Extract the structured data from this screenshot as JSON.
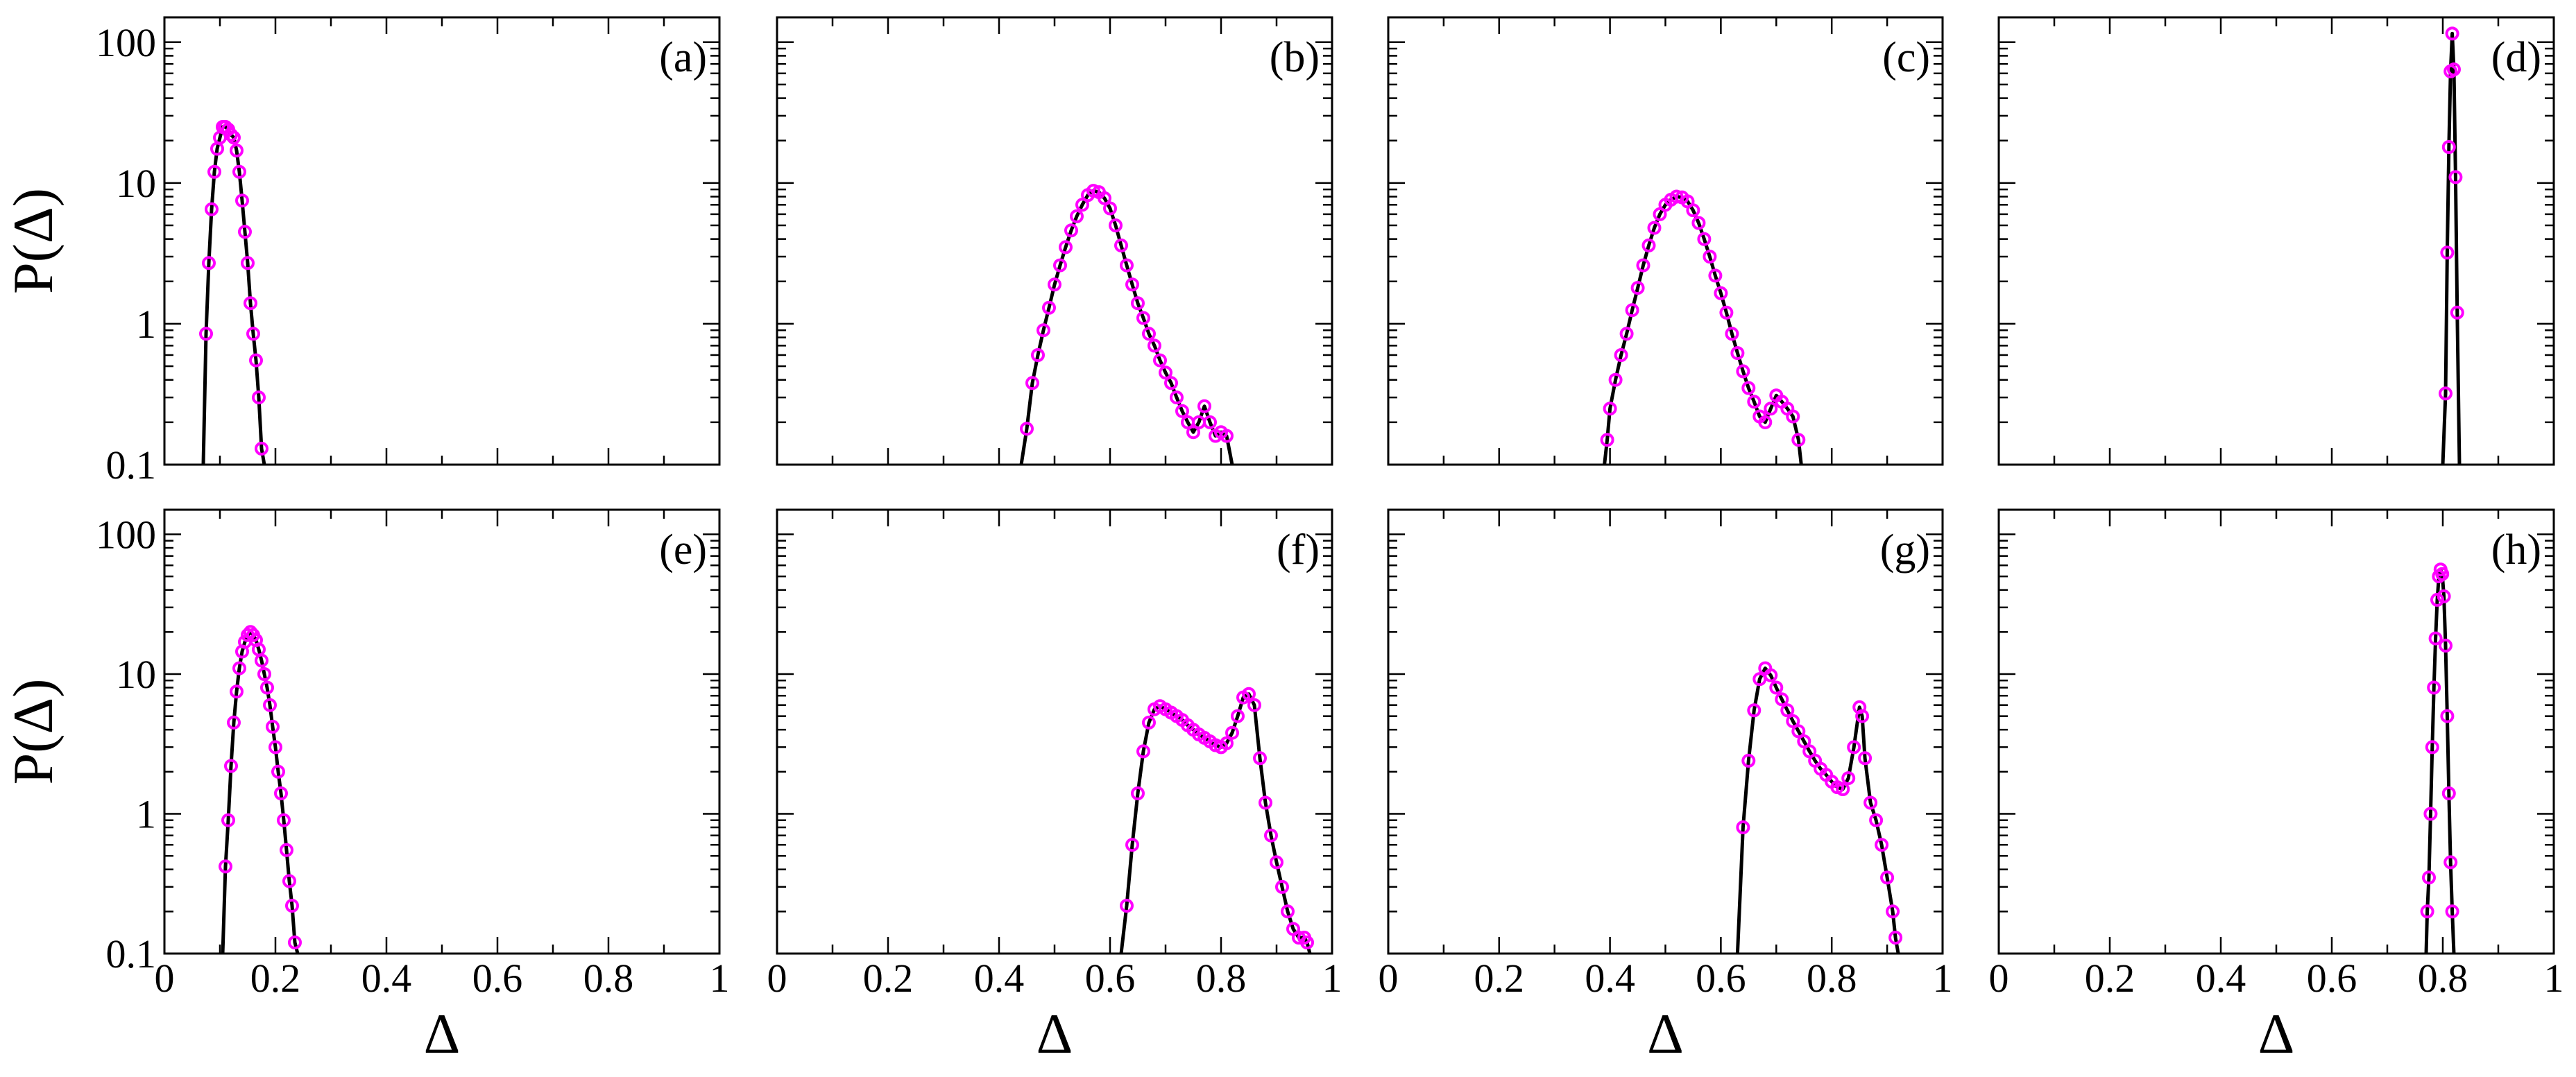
{
  "figure": {
    "xlabel": "Δ",
    "ylabel": "P(Δ)",
    "line_color": "#000000",
    "marker_color": "#ff00ff",
    "x_tick_labels": [
      "0",
      "0.2",
      "0.4",
      "0.6",
      "0.8",
      "1"
    ],
    "y_tick_labels": [
      "0.1",
      "1",
      "10",
      "100"
    ]
  },
  "chart_data": [
    {
      "panel": "(a)",
      "type": "line",
      "xlim": [
        0,
        1
      ],
      "ylim": [
        0.1,
        150
      ],
      "yscale": "log",
      "xlabel": "",
      "ylabel": "P(Δ)",
      "series": [
        {
          "name": "P(Δ)",
          "points": [
            [
              0.07,
              0.1
            ],
            [
              0.075,
              0.85
            ],
            [
              0.08,
              2.7
            ],
            [
              0.085,
              6.5
            ],
            [
              0.09,
              12
            ],
            [
              0.095,
              17.5
            ],
            [
              0.1,
              21
            ],
            [
              0.105,
              25
            ],
            [
              0.11,
              25
            ],
            [
              0.115,
              24
            ],
            [
              0.12,
              22
            ],
            [
              0.125,
              21
            ],
            [
              0.13,
              17
            ],
            [
              0.135,
              12
            ],
            [
              0.14,
              7.5
            ],
            [
              0.145,
              4.5
            ],
            [
              0.15,
              2.7
            ],
            [
              0.155,
              1.4
            ],
            [
              0.16,
              0.85
            ],
            [
              0.165,
              0.55
            ],
            [
              0.17,
              0.3
            ],
            [
              0.175,
              0.13
            ],
            [
              0.18,
              0.1
            ]
          ]
        }
      ]
    },
    {
      "panel": "(b)",
      "type": "line",
      "xlim": [
        0,
        1
      ],
      "ylim": [
        0.1,
        150
      ],
      "yscale": "log",
      "series": [
        {
          "name": "P(Δ)",
          "points": [
            [
              0.44,
              0.1
            ],
            [
              0.45,
              0.18
            ],
            [
              0.46,
              0.38
            ],
            [
              0.47,
              0.6
            ],
            [
              0.48,
              0.9
            ],
            [
              0.49,
              1.3
            ],
            [
              0.5,
              1.9
            ],
            [
              0.51,
              2.6
            ],
            [
              0.52,
              3.5
            ],
            [
              0.53,
              4.6
            ],
            [
              0.54,
              5.8
            ],
            [
              0.55,
              7
            ],
            [
              0.56,
              8.2
            ],
            [
              0.57,
              8.8
            ],
            [
              0.58,
              8.6
            ],
            [
              0.59,
              7.8
            ],
            [
              0.6,
              6.6
            ],
            [
              0.61,
              5
            ],
            [
              0.62,
              3.6
            ],
            [
              0.63,
              2.6
            ],
            [
              0.64,
              1.9
            ],
            [
              0.65,
              1.4
            ],
            [
              0.66,
              1.1
            ],
            [
              0.67,
              0.85
            ],
            [
              0.68,
              0.7
            ],
            [
              0.69,
              0.55
            ],
            [
              0.7,
              0.45
            ],
            [
              0.71,
              0.38
            ],
            [
              0.72,
              0.3
            ],
            [
              0.73,
              0.24
            ],
            [
              0.74,
              0.2
            ],
            [
              0.75,
              0.17
            ],
            [
              0.76,
              0.2
            ],
            [
              0.77,
              0.26
            ],
            [
              0.78,
              0.2
            ],
            [
              0.79,
              0.16
            ],
            [
              0.8,
              0.17
            ],
            [
              0.81,
              0.16
            ],
            [
              0.82,
              0.1
            ]
          ]
        }
      ]
    },
    {
      "panel": "(c)",
      "type": "line",
      "xlim": [
        0,
        1
      ],
      "ylim": [
        0.1,
        150
      ],
      "yscale": "log",
      "series": [
        {
          "name": "P(Δ)",
          "points": [
            [
              0.39,
              0.1
            ],
            [
              0.395,
              0.15
            ],
            [
              0.4,
              0.25
            ],
            [
              0.41,
              0.4
            ],
            [
              0.42,
              0.6
            ],
            [
              0.43,
              0.85
            ],
            [
              0.44,
              1.25
            ],
            [
              0.45,
              1.8
            ],
            [
              0.46,
              2.6
            ],
            [
              0.47,
              3.6
            ],
            [
              0.48,
              4.8
            ],
            [
              0.49,
              6
            ],
            [
              0.5,
              7
            ],
            [
              0.51,
              7.6
            ],
            [
              0.52,
              8
            ],
            [
              0.53,
              7.9
            ],
            [
              0.54,
              7.4
            ],
            [
              0.55,
              6.4
            ],
            [
              0.56,
              5.2
            ],
            [
              0.57,
              4
            ],
            [
              0.58,
              3
            ],
            [
              0.59,
              2.2
            ],
            [
              0.6,
              1.65
            ],
            [
              0.61,
              1.2
            ],
            [
              0.62,
              0.85
            ],
            [
              0.63,
              0.62
            ],
            [
              0.64,
              0.46
            ],
            [
              0.65,
              0.35
            ],
            [
              0.66,
              0.28
            ],
            [
              0.67,
              0.22
            ],
            [
              0.68,
              0.2
            ],
            [
              0.69,
              0.25
            ],
            [
              0.7,
              0.31
            ],
            [
              0.71,
              0.28
            ],
            [
              0.72,
              0.25
            ],
            [
              0.73,
              0.22
            ],
            [
              0.74,
              0.15
            ],
            [
              0.745,
              0.1
            ]
          ]
        }
      ]
    },
    {
      "panel": "(d)",
      "type": "line",
      "xlim": [
        0,
        1
      ],
      "ylim": [
        0.1,
        150
      ],
      "yscale": "log",
      "series": [
        {
          "name": "P(Δ)",
          "points": [
            [
              0.8,
              0.1
            ],
            [
              0.805,
              0.32
            ],
            [
              0.808,
              3.2
            ],
            [
              0.811,
              18
            ],
            [
              0.814,
              62
            ],
            [
              0.817,
              115
            ],
            [
              0.82,
              64
            ],
            [
              0.823,
              11
            ],
            [
              0.826,
              1.2
            ],
            [
              0.83,
              0.1
            ]
          ]
        }
      ]
    },
    {
      "panel": "(e)",
      "type": "line",
      "xlim": [
        0,
        1
      ],
      "ylim": [
        0.1,
        150
      ],
      "yscale": "log",
      "xlabel": "Δ",
      "ylabel": "P(Δ)",
      "series": [
        {
          "name": "P(Δ)",
          "points": [
            [
              0.105,
              0.1
            ],
            [
              0.11,
              0.42
            ],
            [
              0.115,
              0.9
            ],
            [
              0.12,
              2.2
            ],
            [
              0.125,
              4.5
            ],
            [
              0.13,
              7.5
            ],
            [
              0.135,
              11
            ],
            [
              0.14,
              14.5
            ],
            [
              0.145,
              17
            ],
            [
              0.15,
              19
            ],
            [
              0.155,
              20
            ],
            [
              0.16,
              19
            ],
            [
              0.165,
              17.5
            ],
            [
              0.17,
              15
            ],
            [
              0.175,
              12.5
            ],
            [
              0.18,
              10
            ],
            [
              0.185,
              8
            ],
            [
              0.19,
              6
            ],
            [
              0.195,
              4.2
            ],
            [
              0.2,
              3
            ],
            [
              0.205,
              2
            ],
            [
              0.21,
              1.4
            ],
            [
              0.215,
              0.9
            ],
            [
              0.22,
              0.55
            ],
            [
              0.225,
              0.33
            ],
            [
              0.23,
              0.22
            ],
            [
              0.235,
              0.12
            ],
            [
              0.24,
              0.1
            ]
          ]
        }
      ]
    },
    {
      "panel": "(f)",
      "type": "line",
      "xlim": [
        0,
        1
      ],
      "ylim": [
        0.1,
        150
      ],
      "yscale": "log",
      "xlabel": "Δ",
      "series": [
        {
          "name": "P(Δ)",
          "points": [
            [
              0.62,
              0.1
            ],
            [
              0.63,
              0.22
            ],
            [
              0.64,
              0.6
            ],
            [
              0.65,
              1.4
            ],
            [
              0.66,
              2.8
            ],
            [
              0.67,
              4.5
            ],
            [
              0.68,
              5.6
            ],
            [
              0.69,
              5.9
            ],
            [
              0.7,
              5.6
            ],
            [
              0.71,
              5.3
            ],
            [
              0.72,
              5
            ],
            [
              0.73,
              4.7
            ],
            [
              0.74,
              4.3
            ],
            [
              0.75,
              4
            ],
            [
              0.76,
              3.7
            ],
            [
              0.77,
              3.5
            ],
            [
              0.78,
              3.3
            ],
            [
              0.79,
              3.1
            ],
            [
              0.8,
              3
            ],
            [
              0.81,
              3.2
            ],
            [
              0.82,
              3.8
            ],
            [
              0.83,
              5
            ],
            [
              0.84,
              6.8
            ],
            [
              0.85,
              7.2
            ],
            [
              0.86,
              6
            ],
            [
              0.87,
              2.5
            ],
            [
              0.88,
              1.2
            ],
            [
              0.89,
              0.7
            ],
            [
              0.9,
              0.45
            ],
            [
              0.91,
              0.3
            ],
            [
              0.92,
              0.2
            ],
            [
              0.93,
              0.15
            ],
            [
              0.94,
              0.13
            ],
            [
              0.95,
              0.13
            ],
            [
              0.955,
              0.12
            ],
            [
              0.96,
              0.1
            ]
          ]
        }
      ]
    },
    {
      "panel": "(g)",
      "type": "line",
      "xlim": [
        0,
        1
      ],
      "ylim": [
        0.1,
        150
      ],
      "yscale": "log",
      "xlabel": "Δ",
      "series": [
        {
          "name": "P(Δ)",
          "points": [
            [
              0.63,
              0.1
            ],
            [
              0.64,
              0.8
            ],
            [
              0.65,
              2.4
            ],
            [
              0.66,
              5.5
            ],
            [
              0.67,
              9.2
            ],
            [
              0.68,
              11
            ],
            [
              0.69,
              9.8
            ],
            [
              0.7,
              8
            ],
            [
              0.71,
              6.6
            ],
            [
              0.72,
              5.5
            ],
            [
              0.73,
              4.6
            ],
            [
              0.74,
              3.9
            ],
            [
              0.75,
              3.3
            ],
            [
              0.76,
              2.8
            ],
            [
              0.77,
              2.4
            ],
            [
              0.78,
              2.1
            ],
            [
              0.79,
              1.9
            ],
            [
              0.8,
              1.7
            ],
            [
              0.81,
              1.55
            ],
            [
              0.82,
              1.5
            ],
            [
              0.83,
              1.8
            ],
            [
              0.84,
              3
            ],
            [
              0.85,
              5.8
            ],
            [
              0.855,
              5
            ],
            [
              0.86,
              2.5
            ],
            [
              0.87,
              1.2
            ],
            [
              0.88,
              0.9
            ],
            [
              0.89,
              0.6
            ],
            [
              0.9,
              0.35
            ],
            [
              0.91,
              0.2
            ],
            [
              0.915,
              0.13
            ],
            [
              0.92,
              0.1
            ]
          ]
        }
      ]
    },
    {
      "panel": "(h)",
      "type": "line",
      "xlim": [
        0,
        1
      ],
      "ylim": [
        0.1,
        150
      ],
      "yscale": "log",
      "xlabel": "Δ",
      "series": [
        {
          "name": "P(Δ)",
          "points": [
            [
              0.77,
              0.1
            ],
            [
              0.772,
              0.2
            ],
            [
              0.775,
              0.35
            ],
            [
              0.778,
              1
            ],
            [
              0.781,
              3
            ],
            [
              0.784,
              8
            ],
            [
              0.787,
              18
            ],
            [
              0.79,
              34
            ],
            [
              0.793,
              50
            ],
            [
              0.796,
              56
            ],
            [
              0.799,
              52
            ],
            [
              0.802,
              36
            ],
            [
              0.805,
              16
            ],
            [
              0.808,
              5
            ],
            [
              0.811,
              1.4
            ],
            [
              0.814,
              0.45
            ],
            [
              0.817,
              0.2
            ],
            [
              0.82,
              0.1
            ]
          ]
        }
      ]
    }
  ]
}
